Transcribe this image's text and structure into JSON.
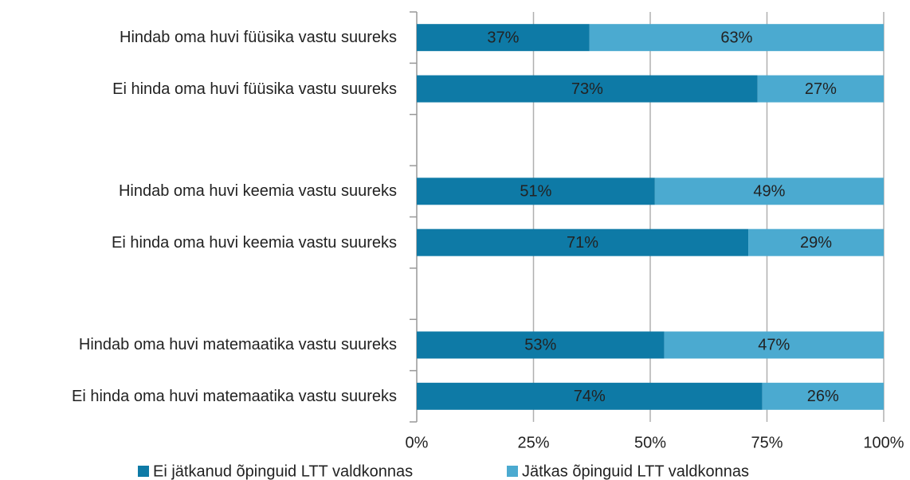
{
  "chart_data": {
    "type": "stacked_bar_horizontal",
    "categories": [
      "Hindab oma huvi füüsika vastu suureks",
      "Ei hinda oma huvi füüsika vastu suureks",
      null,
      "Hindab oma huvi keemia vastu suureks",
      "Ei hinda oma huvi keemia vastu suureks",
      null,
      "Hindab oma huvi matemaatika vastu suureks",
      "Ei hinda oma huvi matemaatika vastu suureks"
    ],
    "series": [
      {
        "name": "Ei jätkanud õpinguid LTT valdkonnas",
        "color": "#0e7aa6",
        "values": [
          37,
          73,
          null,
          51,
          71,
          null,
          53,
          74
        ],
        "value_labels": [
          "37%",
          "73%",
          null,
          "51%",
          "71%",
          null,
          "53%",
          "74%"
        ]
      },
      {
        "name": "Jätkas õpinguid LTT valdkonnas",
        "color": "#4baad0",
        "values": [
          63,
          27,
          null,
          49,
          29,
          null,
          47,
          26
        ],
        "value_labels": [
          "63%",
          "27%",
          null,
          "49%",
          "29%",
          null,
          "47%",
          "26%"
        ]
      }
    ],
    "xlim": [
      0,
      100
    ],
    "xticks": [
      {
        "value": 0,
        "label": "0%"
      },
      {
        "value": 25,
        "label": "25%"
      },
      {
        "value": 50,
        "label": "50%"
      },
      {
        "value": 75,
        "label": "75%"
      },
      {
        "value": 100,
        "label": "100%"
      }
    ],
    "grid": true,
    "legend": "bottom"
  }
}
